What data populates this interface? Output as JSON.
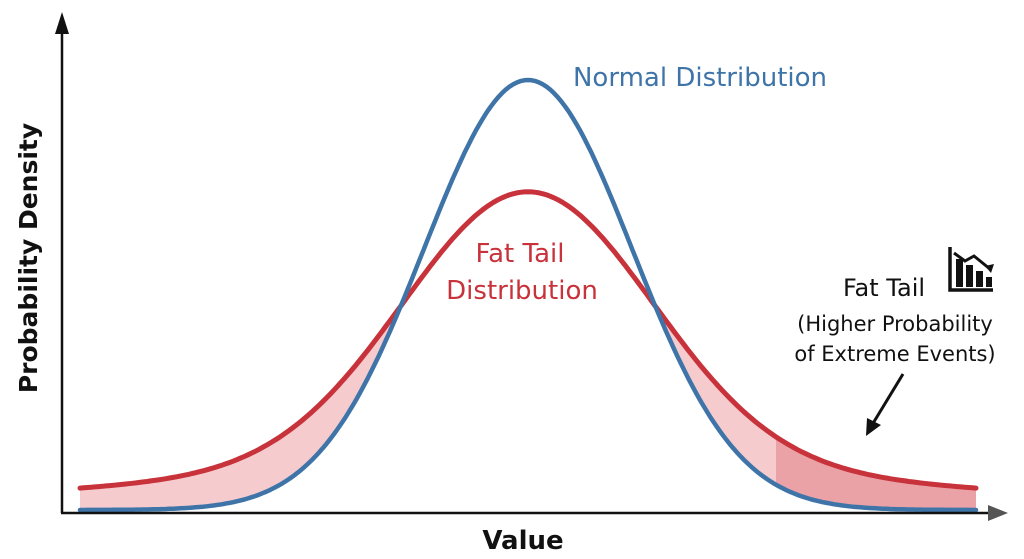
{
  "chart_data": {
    "type": "line",
    "title": "",
    "xlabel": "Value",
    "ylabel": "Probability Density",
    "xlim": [
      -4.3,
      4.3
    ],
    "ylim": [
      0,
      1.0
    ],
    "grid": false,
    "series": [
      {
        "name": "Normal Distribution",
        "label_lines": [
          "Normal Distribution"
        ],
        "distribution": "normal",
        "peak": 1.0,
        "scale": 1.0,
        "color": "#3f74a8"
      },
      {
        "name": "Fat Tail Distribution",
        "label_lines": [
          "Fat Tail",
          "Distribution"
        ],
        "distribution": "fat-tailed",
        "peak": 0.74,
        "scale": 1.18,
        "tail_weight": 0.2,
        "tail_width": 9.5,
        "color": "#c8323a"
      }
    ],
    "annotations": [
      {
        "type": "tail-callout",
        "title": "Fat Tail",
        "subtitle_lines": [
          "(Higher Probability",
          "of Extreme Events)"
        ],
        "icon": "falling-bar-chart-icon",
        "points_to": "right-tail"
      }
    ]
  }
}
